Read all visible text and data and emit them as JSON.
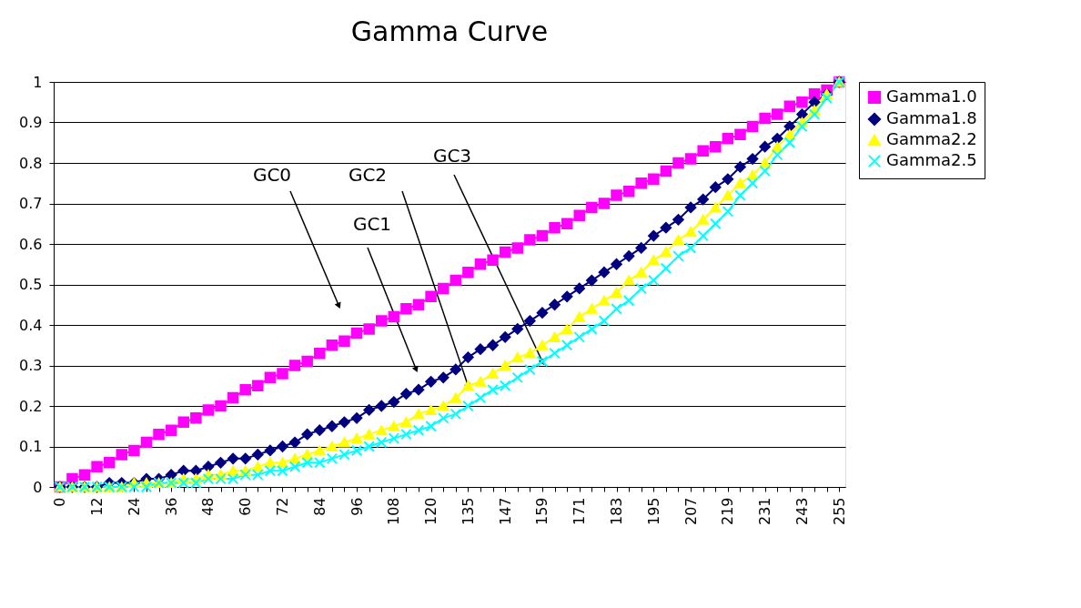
{
  "chart_data": {
    "type": "line",
    "title": "Gamma Curve",
    "categories": [
      "0",
      null,
      null,
      "12",
      null,
      null,
      "24",
      null,
      null,
      "36",
      null,
      null,
      "48",
      null,
      null,
      "60",
      null,
      null,
      "72",
      null,
      null,
      "84",
      null,
      null,
      "96",
      null,
      null,
      "108",
      null,
      null,
      "120",
      null,
      null,
      "135",
      null,
      null,
      "147",
      null,
      null,
      "159",
      null,
      null,
      "171",
      null,
      null,
      "183",
      null,
      null,
      "195",
      null,
      null,
      "207",
      null,
      null,
      "219",
      null,
      null,
      "231",
      null,
      null,
      "243",
      null,
      null,
      "255"
    ],
    "series": [
      {
        "name": "Gamma1.0",
        "color": "#ff00ff",
        "marker": "square",
        "values": [
          0,
          0.02,
          0.03,
          0.05,
          0.06,
          0.08,
          0.09,
          0.11,
          0.13,
          0.14,
          0.16,
          0.17,
          0.19,
          0.2,
          0.22,
          0.24,
          0.25,
          0.27,
          0.28,
          0.3,
          0.31,
          0.33,
          0.35,
          0.36,
          0.38,
          0.39,
          0.41,
          0.42,
          0.44,
          0.45,
          0.47,
          0.49,
          0.51,
          0.53,
          0.55,
          0.56,
          0.58,
          0.59,
          0.61,
          0.62,
          0.64,
          0.65,
          0.67,
          0.69,
          0.7,
          0.72,
          0.73,
          0.75,
          0.76,
          0.78,
          0.8,
          0.81,
          0.83,
          0.84,
          0.86,
          0.87,
          0.89,
          0.91,
          0.92,
          0.94,
          0.95,
          0.97,
          0.98,
          1
        ]
      },
      {
        "name": "Gamma1.8",
        "color": "#000080",
        "marker": "diamond",
        "values": [
          0,
          0,
          0,
          0,
          0.01,
          0.01,
          0.01,
          0.02,
          0.02,
          0.03,
          0.04,
          0.04,
          0.05,
          0.06,
          0.07,
          0.07,
          0.08,
          0.09,
          0.1,
          0.11,
          0.13,
          0.14,
          0.15,
          0.16,
          0.17,
          0.19,
          0.2,
          0.21,
          0.23,
          0.24,
          0.26,
          0.27,
          0.29,
          0.32,
          0.34,
          0.35,
          0.37,
          0.39,
          0.41,
          0.43,
          0.45,
          0.47,
          0.49,
          0.51,
          0.53,
          0.55,
          0.57,
          0.59,
          0.62,
          0.64,
          0.66,
          0.69,
          0.71,
          0.74,
          0.76,
          0.79,
          0.81,
          0.84,
          0.86,
          0.89,
          0.92,
          0.95,
          0.97,
          1
        ]
      },
      {
        "name": "Gamma2.2",
        "color": "#ffff00",
        "marker": "triangle",
        "values": [
          0,
          0,
          0,
          0,
          0,
          0,
          0.01,
          0.01,
          0.01,
          0.01,
          0.02,
          0.02,
          0.03,
          0.03,
          0.04,
          0.04,
          0.05,
          0.06,
          0.06,
          0.07,
          0.08,
          0.09,
          0.1,
          0.11,
          0.12,
          0.13,
          0.14,
          0.15,
          0.16,
          0.18,
          0.19,
          0.2,
          0.22,
          0.25,
          0.26,
          0.28,
          0.3,
          0.32,
          0.33,
          0.35,
          0.37,
          0.39,
          0.42,
          0.44,
          0.46,
          0.48,
          0.51,
          0.53,
          0.56,
          0.58,
          0.61,
          0.63,
          0.66,
          0.69,
          0.72,
          0.75,
          0.77,
          0.8,
          0.84,
          0.87,
          0.9,
          0.93,
          0.97,
          1
        ]
      },
      {
        "name": "Gamma2.5",
        "color": "#00ffff",
        "marker": "cross",
        "values": [
          0,
          0,
          0,
          0,
          0,
          0,
          0,
          0,
          0.01,
          0.01,
          0.01,
          0.01,
          0.02,
          0.02,
          0.02,
          0.03,
          0.03,
          0.04,
          0.04,
          0.05,
          0.06,
          0.06,
          0.07,
          0.08,
          0.09,
          0.1,
          0.11,
          0.12,
          0.13,
          0.14,
          0.15,
          0.17,
          0.18,
          0.2,
          0.22,
          0.24,
          0.25,
          0.27,
          0.29,
          0.31,
          0.33,
          0.35,
          0.37,
          0.39,
          0.41,
          0.44,
          0.46,
          0.49,
          0.51,
          0.54,
          0.57,
          0.59,
          0.62,
          0.65,
          0.68,
          0.72,
          0.75,
          0.78,
          0.82,
          0.85,
          0.89,
          0.92,
          0.96,
          1
        ]
      }
    ],
    "ylim": [
      0,
      1
    ],
    "yticks": [
      0,
      0.1,
      0.2,
      0.3,
      0.4,
      0.5,
      0.6,
      0.7,
      0.8,
      0.9,
      1
    ],
    "grid": "y",
    "legend": "right",
    "line_style": "solid",
    "annotations": [
      "GC0",
      "GC1",
      {
        "text": "GC2",
        "x": "135",
        "y": 0.25
      },
      {
        "text": "GC3",
        "x": "159",
        "y": 0.31
      }
    ]
  }
}
